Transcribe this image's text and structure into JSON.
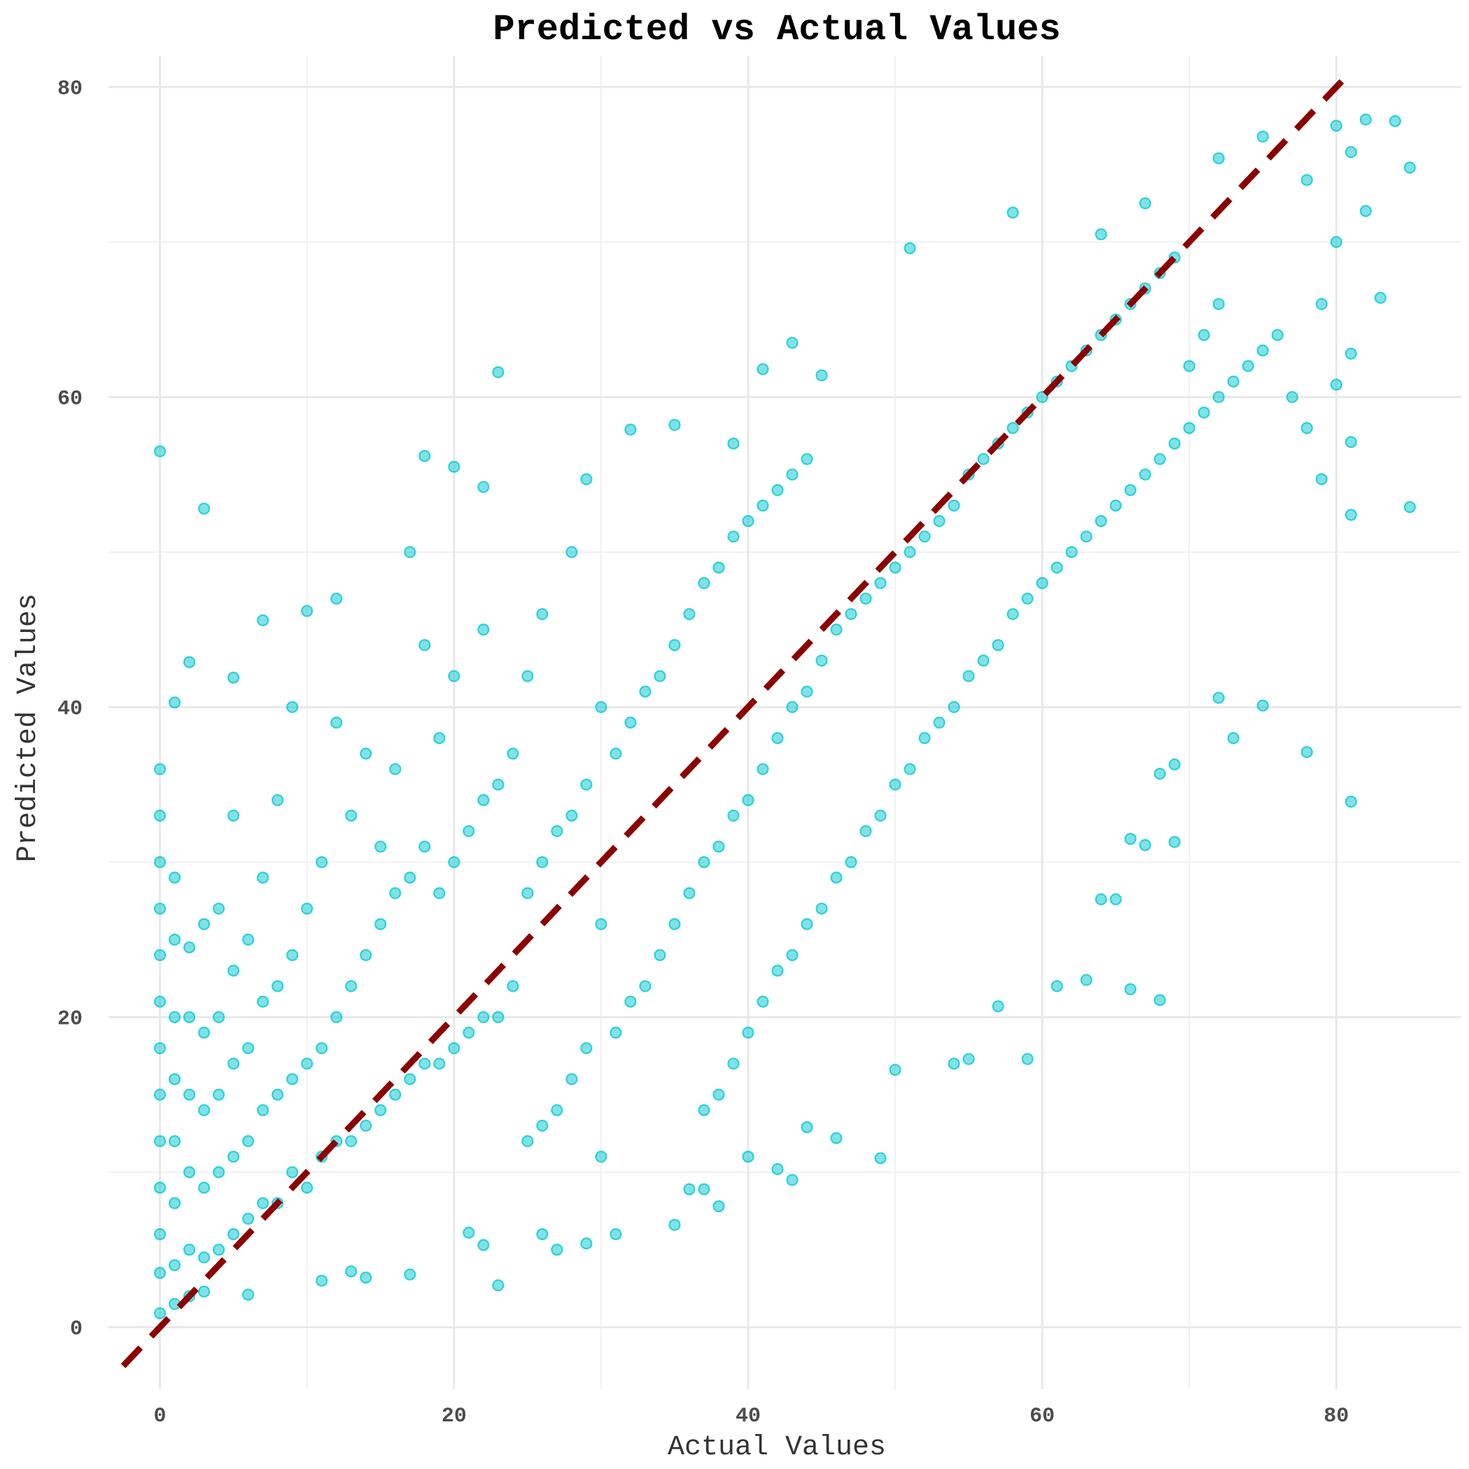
{
  "chart_data": {
    "type": "scatter",
    "title": "Predicted vs Actual Values",
    "xlabel": "Actual Values",
    "ylabel": "Predicted Values",
    "xlim": [
      -3.5,
      88.5
    ],
    "ylim": [
      -4,
      82
    ],
    "x_ticks": [
      0,
      20,
      40,
      60,
      80
    ],
    "y_ticks": [
      0,
      20,
      40,
      60,
      80
    ],
    "grid": true,
    "legend": "none",
    "point_color": "#00C5CD",
    "reference_line": {
      "type": "identity",
      "style": "dashed",
      "color": "#8B0000",
      "from": [
        -2.5,
        -2.5
      ],
      "to": [
        80.5,
        80.5
      ]
    },
    "series": [
      {
        "points": [
          [
            0,
            56.5
          ],
          [
            3,
            52.8
          ],
          [
            23,
            61.6
          ],
          [
            43,
            63.5
          ],
          [
            51,
            69.6
          ],
          [
            58,
            71.9
          ],
          [
            0,
            36.0
          ],
          [
            1,
            40.3
          ],
          [
            2,
            42.9
          ],
          [
            5,
            41.9
          ],
          [
            7,
            45.6
          ],
          [
            10,
            46.2
          ],
          [
            12,
            47.0
          ],
          [
            17,
            50.0
          ],
          [
            18,
            56.2
          ],
          [
            20,
            55.5
          ],
          [
            22,
            54.2
          ],
          [
            29,
            54.7
          ],
          [
            32,
            57.9
          ],
          [
            35,
            58.2
          ],
          [
            39,
            57.0
          ],
          [
            41,
            61.8
          ],
          [
            45,
            61.4
          ],
          [
            64,
            70.5
          ],
          [
            67,
            72.5
          ],
          [
            72,
            75.4
          ],
          [
            75,
            76.8
          ],
          [
            80,
            77.5
          ],
          [
            82,
            77.9
          ],
          [
            84,
            77.8
          ],
          [
            85,
            74.8
          ],
          [
            81,
            75.8
          ],
          [
            83,
            66.4
          ],
          [
            81,
            62.8
          ],
          [
            80,
            60.8
          ],
          [
            79,
            54.7
          ],
          [
            81,
            57.1
          ],
          [
            85,
            52.9
          ],
          [
            81,
            52.4
          ],
          [
            75,
            40.1
          ],
          [
            81,
            33.9
          ],
          [
            78,
            37.1
          ],
          [
            73,
            38.0
          ],
          [
            72,
            40.6
          ],
          [
            69,
            36.3
          ],
          [
            68,
            35.7
          ],
          [
            67,
            31.1
          ],
          [
            69,
            31.3
          ],
          [
            66,
            31.5
          ],
          [
            65,
            27.6
          ],
          [
            64,
            27.6
          ],
          [
            63,
            22.4
          ],
          [
            61,
            22.0
          ],
          [
            66,
            21.8
          ],
          [
            68,
            21.1
          ],
          [
            59,
            17.3
          ],
          [
            57,
            20.7
          ],
          [
            54,
            17.0
          ],
          [
            55,
            17.3
          ],
          [
            50,
            16.6
          ],
          [
            49,
            10.9
          ],
          [
            46,
            12.2
          ],
          [
            44,
            12.9
          ],
          [
            43,
            9.5
          ],
          [
            42,
            10.2
          ],
          [
            40,
            11.0
          ],
          [
            38,
            7.8
          ],
          [
            37,
            8.9
          ],
          [
            36,
            8.9
          ],
          [
            35,
            6.6
          ],
          [
            31,
            6.0
          ],
          [
            29,
            5.4
          ],
          [
            27,
            5.0
          ],
          [
            26,
            6.0
          ],
          [
            23,
            2.7
          ],
          [
            22,
            5.3
          ],
          [
            21,
            6.1
          ],
          [
            14,
            3.2
          ],
          [
            13,
            3.6
          ],
          [
            17,
            3.4
          ],
          [
            11,
            3.0
          ],
          [
            6,
            2.1
          ],
          [
            0,
            0.9
          ],
          [
            1,
            1.5
          ],
          [
            2,
            2.0
          ],
          [
            3,
            2.3
          ],
          [
            0,
            3.5
          ],
          [
            0,
            6.0
          ],
          [
            0,
            9.0
          ],
          [
            0,
            12.0
          ],
          [
            0,
            15.0
          ],
          [
            0,
            18.0
          ],
          [
            0,
            21.0
          ],
          [
            0,
            24.0
          ],
          [
            0,
            27.0
          ],
          [
            0,
            30.0
          ],
          [
            0,
            33.0
          ],
          [
            1,
            4.0
          ],
          [
            1,
            8.0
          ],
          [
            1,
            12.0
          ],
          [
            1,
            16.0
          ],
          [
            1,
            20.0
          ],
          [
            1,
            25.0
          ],
          [
            1,
            29.0
          ],
          [
            2,
            5.0
          ],
          [
            2,
            10.0
          ],
          [
            2,
            15.0
          ],
          [
            2,
            20.0
          ],
          [
            2,
            24.5
          ],
          [
            3,
            4.5
          ],
          [
            3,
            9.0
          ],
          [
            3,
            14.0
          ],
          [
            3,
            19.0
          ],
          [
            3,
            26.0
          ],
          [
            4,
            5.0
          ],
          [
            4,
            10.0
          ],
          [
            4,
            15.0
          ],
          [
            4,
            20.0
          ],
          [
            4,
            27.0
          ],
          [
            5,
            6.0
          ],
          [
            5,
            11.0
          ],
          [
            5,
            17.0
          ],
          [
            5,
            23.0
          ],
          [
            5,
            33.0
          ],
          [
            6,
            7.0
          ],
          [
            6,
            12.0
          ],
          [
            6,
            18.0
          ],
          [
            6,
            25.0
          ],
          [
            7,
            8.0
          ],
          [
            7,
            14.0
          ],
          [
            7,
            21.0
          ],
          [
            7,
            29.0
          ],
          [
            8,
            8.0
          ],
          [
            8,
            15.0
          ],
          [
            8,
            22.0
          ],
          [
            8,
            34.0
          ],
          [
            9,
            10.0
          ],
          [
            9,
            16.0
          ],
          [
            9,
            24.0
          ],
          [
            9,
            40.0
          ],
          [
            10,
            9.0
          ],
          [
            10,
            17.0
          ],
          [
            10,
            27.0
          ],
          [
            11,
            11.0
          ],
          [
            11,
            18.0
          ],
          [
            11,
            30.0
          ],
          [
            12,
            12.0
          ],
          [
            12,
            20.0
          ],
          [
            12,
            39.0
          ],
          [
            13,
            12.0
          ],
          [
            13,
            22.0
          ],
          [
            13,
            33.0
          ],
          [
            14,
            13.0
          ],
          [
            14,
            24.0
          ],
          [
            14,
            37.0
          ],
          [
            15,
            14.0
          ],
          [
            15,
            26.0
          ],
          [
            15,
            31.0
          ],
          [
            16,
            15.0
          ],
          [
            16,
            28.0
          ],
          [
            16,
            36.0
          ],
          [
            17,
            16.0
          ],
          [
            17,
            29.0
          ],
          [
            18,
            17.0
          ],
          [
            18,
            31.0
          ],
          [
            18,
            44.0
          ],
          [
            19,
            17.0
          ],
          [
            19,
            28.0
          ],
          [
            19,
            38.0
          ],
          [
            20,
            18.0
          ],
          [
            20,
            30.0
          ],
          [
            20,
            42.0
          ],
          [
            21,
            19.0
          ],
          [
            21,
            32.0
          ],
          [
            22,
            20.0
          ],
          [
            22,
            34.0
          ],
          [
            22,
            45.0
          ],
          [
            23,
            20.0
          ],
          [
            23,
            35.0
          ],
          [
            24,
            22.0
          ],
          [
            24,
            37.0
          ],
          [
            25,
            12.0
          ],
          [
            25,
            28.0
          ],
          [
            25,
            42.0
          ],
          [
            26,
            13.0
          ],
          [
            26,
            30.0
          ],
          [
            26,
            46.0
          ],
          [
            27,
            14.0
          ],
          [
            27,
            32.0
          ],
          [
            28,
            16.0
          ],
          [
            28,
            33.0
          ],
          [
            28,
            50.0
          ],
          [
            29,
            18.0
          ],
          [
            29,
            35.0
          ],
          [
            30,
            11.0
          ],
          [
            30,
            26.0
          ],
          [
            30,
            40.0
          ],
          [
            31,
            19.0
          ],
          [
            31,
            37.0
          ],
          [
            32,
            21.0
          ],
          [
            32,
            39.0
          ],
          [
            33,
            22.0
          ],
          [
            33,
            41.0
          ],
          [
            34,
            24.0
          ],
          [
            34,
            42.0
          ],
          [
            35,
            26.0
          ],
          [
            35,
            44.0
          ],
          [
            36,
            28.0
          ],
          [
            36,
            46.0
          ],
          [
            37,
            14.0
          ],
          [
            37,
            30.0
          ],
          [
            37,
            48.0
          ],
          [
            38,
            15.0
          ],
          [
            38,
            31.0
          ],
          [
            38,
            49.0
          ],
          [
            39,
            17.0
          ],
          [
            39,
            33.0
          ],
          [
            39,
            51.0
          ],
          [
            40,
            19.0
          ],
          [
            40,
            34.0
          ],
          [
            40,
            52.0
          ],
          [
            41,
            21.0
          ],
          [
            41,
            36.0
          ],
          [
            41,
            53.0
          ],
          [
            42,
            23.0
          ],
          [
            42,
            38.0
          ],
          [
            42,
            54.0
          ],
          [
            43,
            24.0
          ],
          [
            43,
            40.0
          ],
          [
            43,
            55.0
          ],
          [
            44,
            26.0
          ],
          [
            44,
            41.0
          ],
          [
            44,
            56.0
          ],
          [
            45,
            27.0
          ],
          [
            45,
            43.0
          ],
          [
            46,
            29.0
          ],
          [
            46,
            45.0
          ],
          [
            47,
            30.0
          ],
          [
            47,
            46.0
          ],
          [
            48,
            32.0
          ],
          [
            48,
            47.0
          ],
          [
            49,
            33.0
          ],
          [
            49,
            48.0
          ],
          [
            50,
            35.0
          ],
          [
            50,
            49.0
          ],
          [
            51,
            36.0
          ],
          [
            51,
            50.0
          ],
          [
            52,
            38.0
          ],
          [
            52,
            51.0
          ],
          [
            53,
            39.0
          ],
          [
            53,
            52.0
          ],
          [
            54,
            40.0
          ],
          [
            54,
            53.0
          ],
          [
            55,
            42.0
          ],
          [
            55,
            55.0
          ],
          [
            56,
            43.0
          ],
          [
            56,
            56.0
          ],
          [
            57,
            44.0
          ],
          [
            57,
            57.0
          ],
          [
            58,
            46.0
          ],
          [
            58,
            58.0
          ],
          [
            59,
            47.0
          ],
          [
            59,
            59.0
          ],
          [
            60,
            48.0
          ],
          [
            60,
            60.0
          ],
          [
            61,
            49.0
          ],
          [
            61,
            61.0
          ],
          [
            62,
            50.0
          ],
          [
            62,
            62.0
          ],
          [
            63,
            51.0
          ],
          [
            63,
            63.0
          ],
          [
            64,
            52.0
          ],
          [
            64,
            64.0
          ],
          [
            65,
            53.0
          ],
          [
            65,
            65.0
          ],
          [
            66,
            54.0
          ],
          [
            66,
            66.0
          ],
          [
            67,
            55.0
          ],
          [
            67,
            67.0
          ],
          [
            68,
            56.0
          ],
          [
            68,
            68.0
          ],
          [
            69,
            57.0
          ],
          [
            69,
            69.0
          ],
          [
            70,
            58.0
          ],
          [
            70,
            62.0
          ],
          [
            71,
            59.0
          ],
          [
            71,
            64.0
          ],
          [
            72,
            60.0
          ],
          [
            72,
            66.0
          ],
          [
            73,
            61.0
          ],
          [
            74,
            62.0
          ],
          [
            75,
            63.0
          ],
          [
            76,
            64.0
          ],
          [
            77,
            60.0
          ],
          [
            78,
            58.0
          ],
          [
            79,
            66.0
          ],
          [
            80,
            70.0
          ],
          [
            82,
            72.0
          ],
          [
            78,
            74.0
          ]
        ]
      }
    ]
  }
}
